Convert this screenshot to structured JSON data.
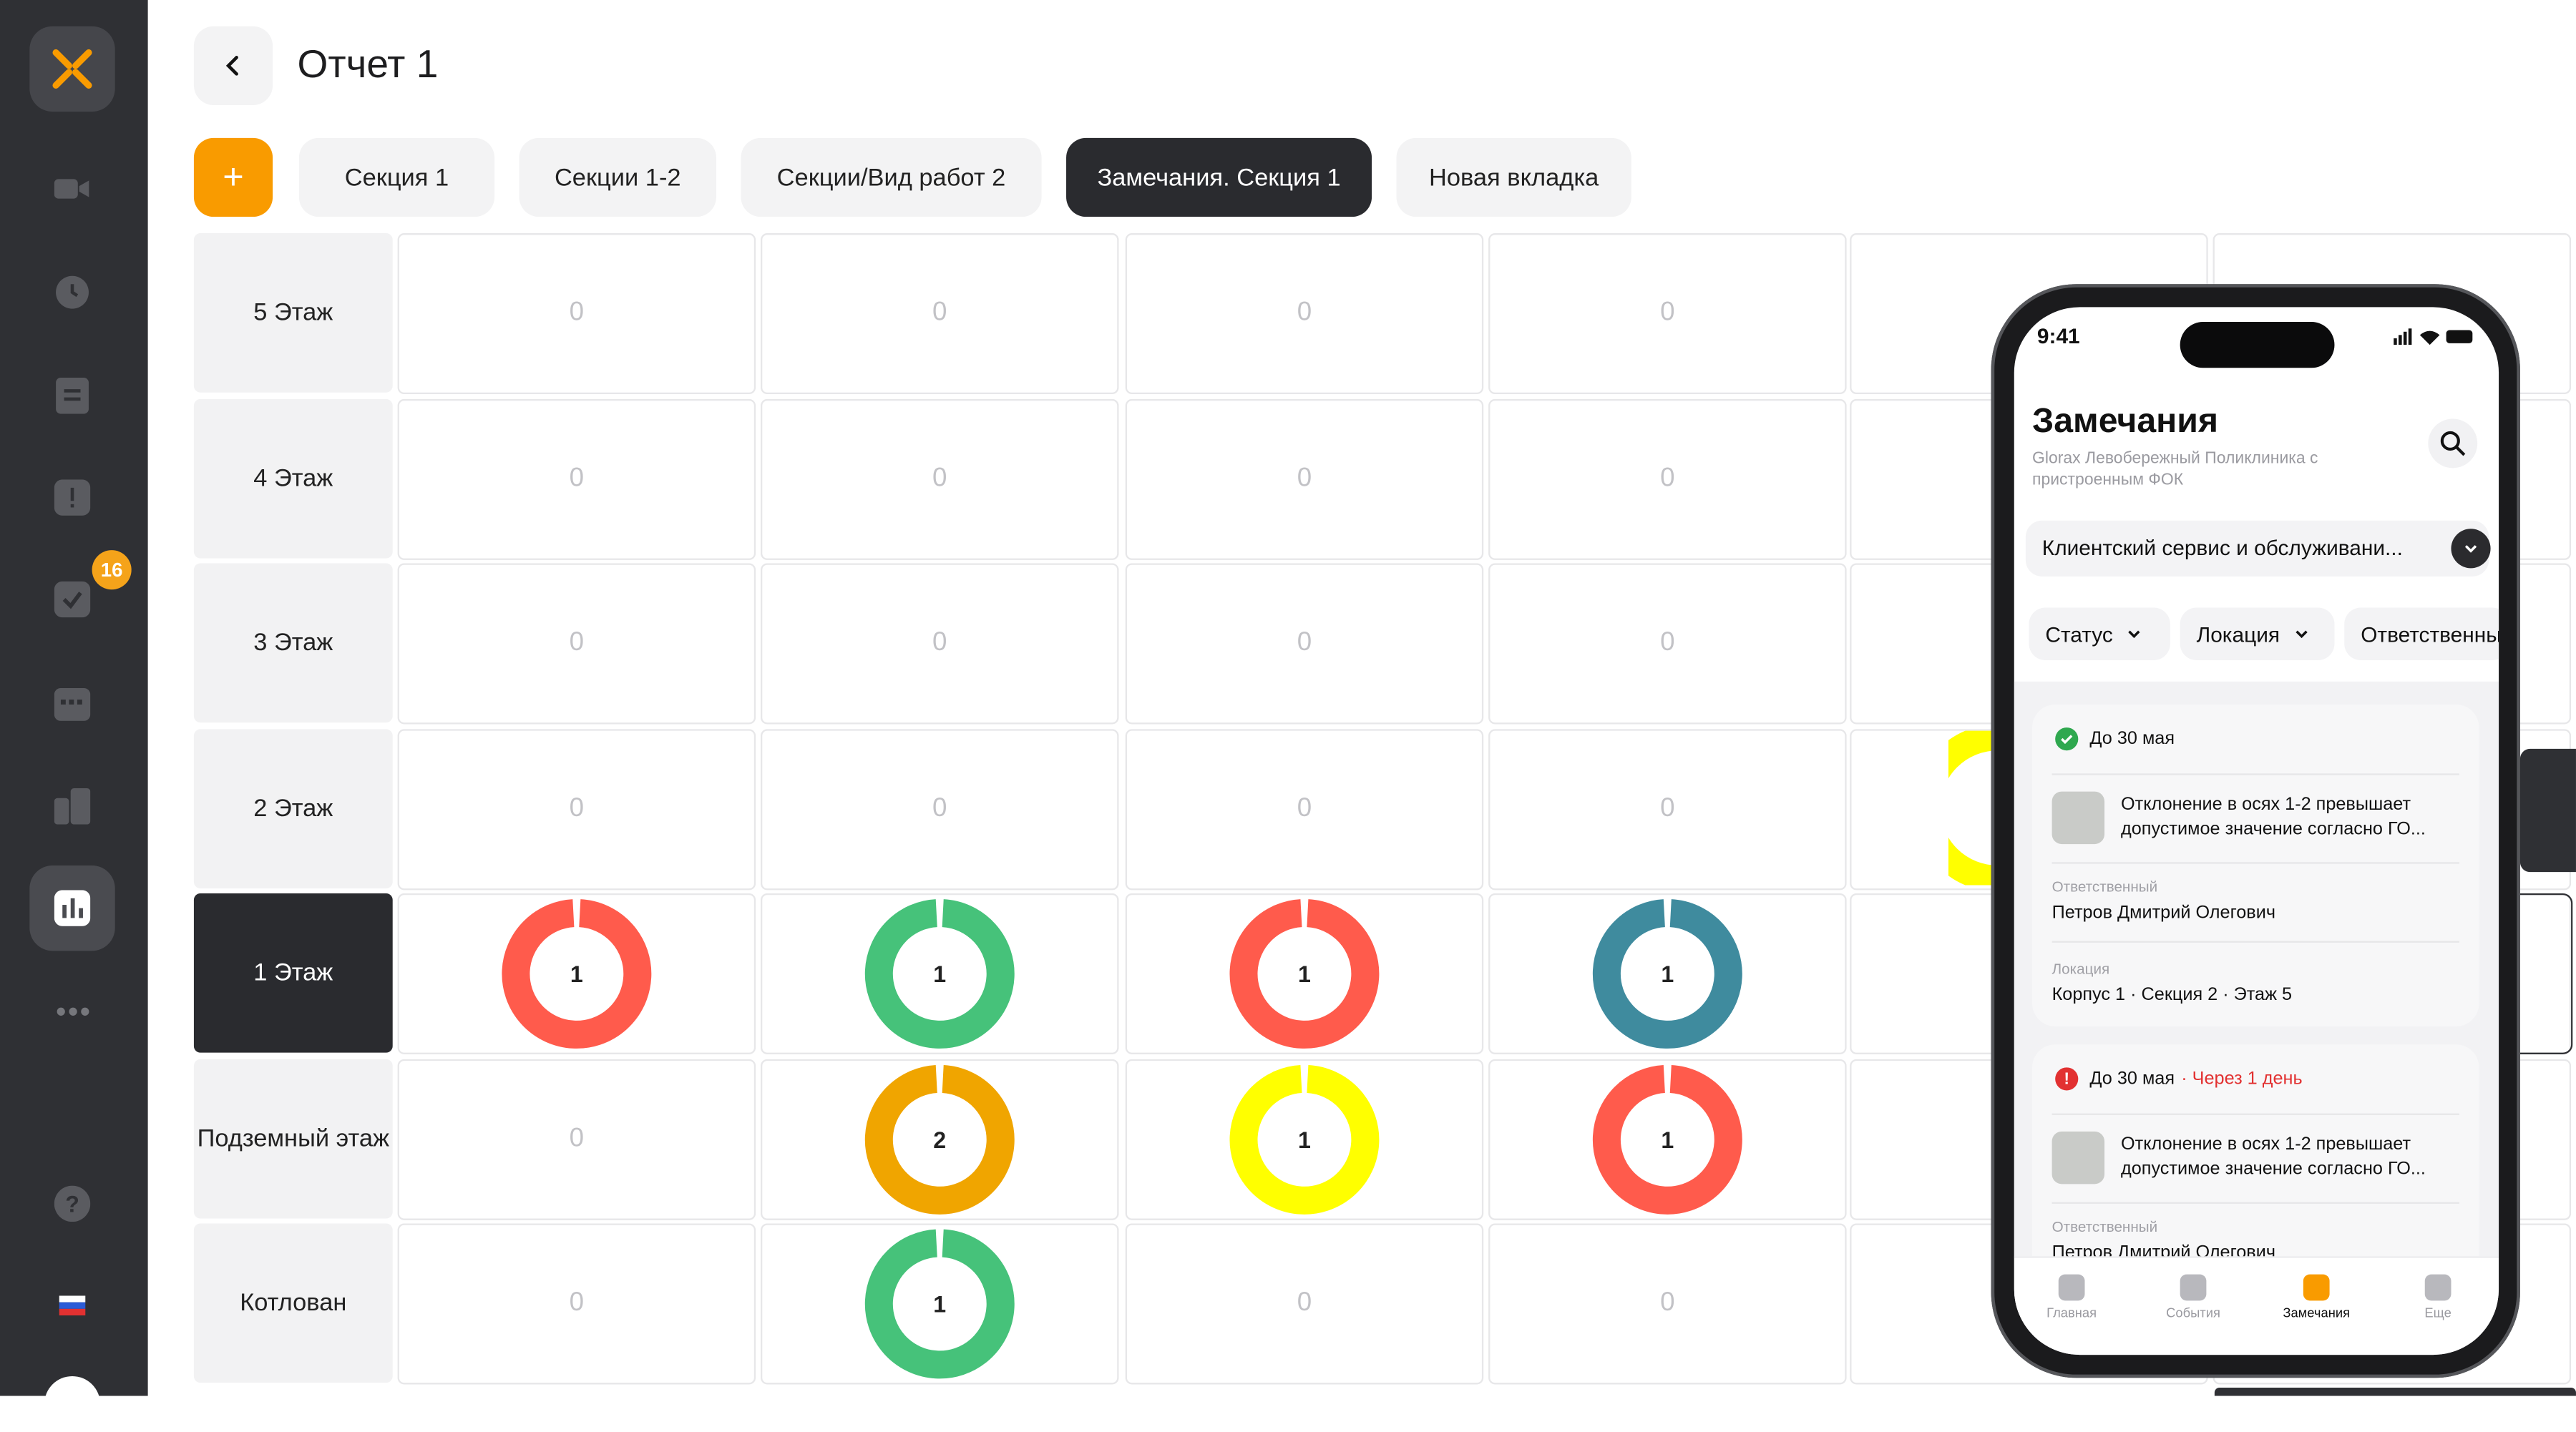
{
  "header": {
    "title": "Отчет 1",
    "add_label": "+"
  },
  "tabs": [
    {
      "label": "Секция 1",
      "active": false
    },
    {
      "label": "Секции 1-2",
      "active": false
    },
    {
      "label": "Секции/Вид работ 2",
      "active": false
    },
    {
      "label": "Замечания. Секция 1",
      "active": true
    },
    {
      "label": "Новая вкладка",
      "active": false
    }
  ],
  "sidebar": {
    "badge_count": "16",
    "items": [
      "camera-icon",
      "clock-icon",
      "document-icon",
      "alert-icon",
      "check-icon",
      "calendar-icon",
      "buildings-icon",
      "report-icon",
      "more-icon",
      "help-icon",
      "flag-icon"
    ],
    "colors": {
      "bg": "#2f3034",
      "accent": "#f99b00"
    }
  },
  "grid": {
    "rows": [
      {
        "label": "5 Этаж",
        "active": false,
        "cells": [
          "0",
          "0",
          "0",
          "0"
        ]
      },
      {
        "label": "4 Этаж",
        "active": false,
        "cells": [
          "0",
          "0",
          "0",
          "0"
        ]
      },
      {
        "label": "3 Этаж",
        "active": false,
        "cells": [
          "0",
          "0",
          "0",
          "0"
        ]
      },
      {
        "label": "2 Этаж",
        "active": false,
        "cells": [
          "0",
          "0",
          "0",
          "0"
        ]
      },
      {
        "label": "1 Этаж",
        "active": true,
        "cells": [
          {
            "value": "1",
            "color": "#ff5b4c"
          },
          {
            "value": "1",
            "color": "#46c27a"
          },
          {
            "value": "1",
            "color": "#ff5b4c"
          },
          {
            "value": "1",
            "color": "#3f8b9e"
          }
        ]
      },
      {
        "label": "Подземный этаж",
        "active": false,
        "cells": [
          "0",
          {
            "value": "2",
            "color": "#f0a500"
          },
          {
            "value": "1",
            "color": "#ffff00"
          },
          {
            "value": "1",
            "color": "#ff5b4c"
          }
        ]
      },
      {
        "label": "Котлован",
        "active": false,
        "cells": [
          "0",
          {
            "value": "1",
            "color": "#46c27a"
          },
          "0",
          "0"
        ]
      }
    ]
  },
  "phone": {
    "time": "9:41",
    "title": "Замечания",
    "subtitle": "Glorax Левобережный Поликлиника с пристроенным ФОК",
    "project_select": "Клиентский сервис и обслуживани...",
    "filters": [
      "Статус",
      "Локация",
      "Ответственный"
    ],
    "cards": [
      {
        "due": "До 30 мая",
        "due_note": "",
        "status": "ok",
        "text": "Отклонение в осях 1-2 превышает допустимое значение согласно ГО...",
        "responsible_label": "Ответственный",
        "responsible": "Петров Дмитрий Олегович",
        "location_label": "Локация",
        "location": "Корпус 1 · Секция 2 · Этаж 5"
      },
      {
        "due": "До 30 мая",
        "due_note": "· Через 1 день",
        "status": "overdue",
        "text": "Отклонение в осях 1-2 превышает допустимое значение согласно ГО...",
        "responsible_label": "Ответственный",
        "responsible": "Петров Дмитрий Олегович"
      }
    ],
    "tabbar": [
      {
        "label": "Главная",
        "active": false
      },
      {
        "label": "События",
        "active": false
      },
      {
        "label": "Замечания",
        "active": true
      },
      {
        "label": "Еще",
        "active": false
      }
    ]
  }
}
